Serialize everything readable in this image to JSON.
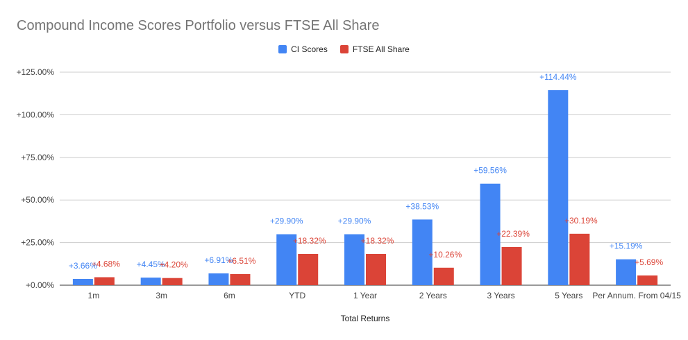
{
  "chart_data": {
    "type": "bar",
    "title": "Compound Income Scores Portfolio versus FTSE All Share",
    "xlabel": "Total Returns",
    "ylabel": "",
    "ylim": [
      0,
      125
    ],
    "yticks": [
      "+0.00%",
      "+25.00%",
      "+50.00%",
      "+75.00%",
      "+100.00%",
      "+125.00%"
    ],
    "ytick_values": [
      0,
      25,
      50,
      75,
      100,
      125
    ],
    "grid": true,
    "legend_position": "top",
    "categories": [
      "1m",
      "3m",
      "6m",
      "YTD",
      "1 Year",
      "2 Years",
      "3 Years",
      "5 Years",
      "Per Annum. From 04/15"
    ],
    "series": [
      {
        "name": "CI Scores",
        "color": "#4285f4",
        "values": [
          3.66,
          4.45,
          6.91,
          29.9,
          29.9,
          38.53,
          59.56,
          114.44,
          15.19
        ],
        "labels": [
          "+3.66%",
          "+4.45%",
          "+6.91%",
          "+29.90%",
          "+29.90%",
          "+38.53%",
          "+59.56%",
          "+114.44%",
          "+15.19%"
        ]
      },
      {
        "name": "FTSE All Share",
        "color": "#db4437",
        "values": [
          4.68,
          4.2,
          6.51,
          18.32,
          18.32,
          10.26,
          22.39,
          30.19,
          5.69
        ],
        "labels": [
          "+4.68%",
          "+4.20%",
          "+6.51%",
          "+18.32%",
          "+18.32%",
          "+10.26%",
          "+22.39%",
          "+30.19%",
          "+5.69%"
        ]
      }
    ]
  }
}
